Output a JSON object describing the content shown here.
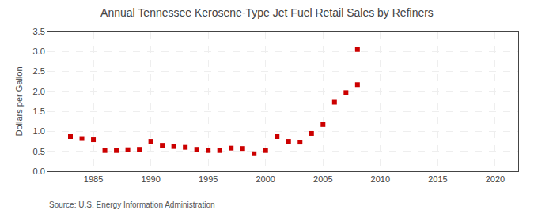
{
  "chart_data": {
    "type": "scatter",
    "title": "Annual Tennessee Kerosene-Type Jet Fuel Retail Sales by Refiners",
    "ylabel": "Dollars per Gallon",
    "annotations": [
      "Source: U.S. Energy Information Administration"
    ],
    "x": [
      1983,
      1984,
      1985,
      1986,
      1987,
      1988,
      1989,
      1990,
      1991,
      1992,
      1993,
      1994,
      1995,
      1996,
      1997,
      1998,
      1999,
      2000,
      2001,
      2002,
      2003,
      2004,
      2005,
      2006,
      2007,
      2008,
      2008
    ],
    "values": [
      0.87,
      0.82,
      0.79,
      0.52,
      0.52,
      0.54,
      0.55,
      0.75,
      0.65,
      0.62,
      0.6,
      0.55,
      0.52,
      0.52,
      0.58,
      0.57,
      0.44,
      0.52,
      0.87,
      0.75,
      0.73,
      0.95,
      1.17,
      1.73,
      1.97,
      2.17,
      3.05
    ],
    "color": "#cc0000",
    "marker": "square",
    "xlim": [
      1981,
      2022
    ],
    "ylim": [
      0.0,
      3.5
    ],
    "xticks": [
      1985,
      1990,
      1995,
      2000,
      2005,
      2010,
      2015,
      2020
    ],
    "yticks": [
      {
        "value": 0.0,
        "label": "0.0"
      },
      0.5,
      {
        "value": 1.0,
        "label": "1.0"
      },
      1.5,
      {
        "value": 2.0,
        "label": "2.0"
      },
      2.5,
      {
        "value": 3.0,
        "label": "3.0"
      },
      3.5
    ],
    "grid": true
  }
}
